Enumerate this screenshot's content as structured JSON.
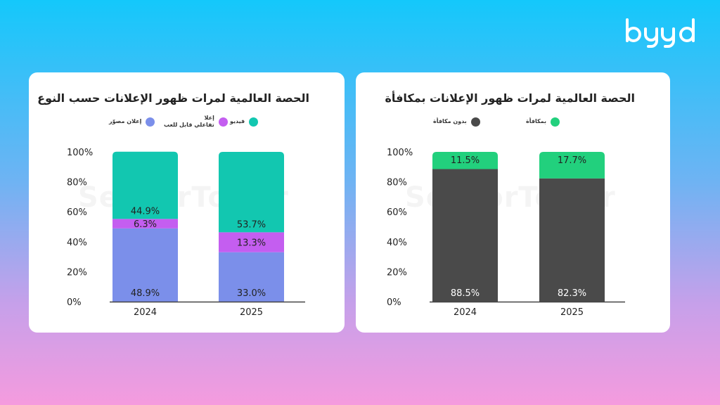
{
  "brand": {
    "name": "byyd"
  },
  "watermark": "SensorTower",
  "charts": {
    "left": {
      "title": "الحصة العالمية لمرات ظهور الإعلانات حسب النوع",
      "legend": [
        {
          "label": "فيديو",
          "color": "#12c7b0"
        },
        {
          "label": "إعلا\nتفاعلي قابل للعب",
          "color": "#c45ef0"
        },
        {
          "label": "إعلان مصوّر",
          "color": "#7b8fea"
        }
      ]
    },
    "right": {
      "title": "الحصة العالمية لمرات ظهور الإعلانات بمكافأة",
      "legend": [
        {
          "label": "بمكافأة",
          "color": "#22d07d"
        },
        {
          "label": "بدون مكافأة",
          "color": "#4a4a4a"
        }
      ]
    }
  },
  "chart_data": [
    {
      "type": "bar",
      "stacked": true,
      "title": "الحصة العالمية لمرات ظهور الإعلانات حسب النوع",
      "categories": [
        "2024",
        "2025"
      ],
      "series": [
        {
          "name": "إعلان مصوّر",
          "values": [
            48.9,
            33.0
          ],
          "labels": [
            "48.9%",
            "33.0%"
          ],
          "color": "#7b8fea"
        },
        {
          "name": "إعلا تفاعلي قابل للعب",
          "values": [
            6.3,
            13.3
          ],
          "labels": [
            "6.3%",
            "13.3%"
          ],
          "color": "#c45ef0"
        },
        {
          "name": "فيديو",
          "values": [
            44.9,
            53.7
          ],
          "labels": [
            "44.9%",
            "53.7%"
          ],
          "color": "#12c7b0"
        }
      ],
      "yticks": [
        "0%",
        "20%",
        "40%",
        "60%",
        "80%",
        "100%"
      ],
      "ylim": [
        0,
        100
      ],
      "grid": false,
      "legend_position": "top"
    },
    {
      "type": "bar",
      "stacked": true,
      "title": "الحصة العالمية لمرات ظهور الإعلانات بمكافأة",
      "categories": [
        "2024",
        "2025"
      ],
      "series": [
        {
          "name": "بدون مكافأة",
          "values": [
            88.5,
            82.3
          ],
          "labels": [
            "88.5%",
            "82.3%"
          ],
          "color": "#4a4a4a"
        },
        {
          "name": "بمكافأة",
          "values": [
            11.5,
            17.7
          ],
          "labels": [
            "11.5%",
            "17.7%"
          ],
          "color": "#22d07d"
        }
      ],
      "yticks": [
        "0%",
        "20%",
        "40%",
        "60%",
        "80%",
        "100%"
      ],
      "ylim": [
        0,
        100
      ],
      "grid": false,
      "legend_position": "top"
    }
  ]
}
